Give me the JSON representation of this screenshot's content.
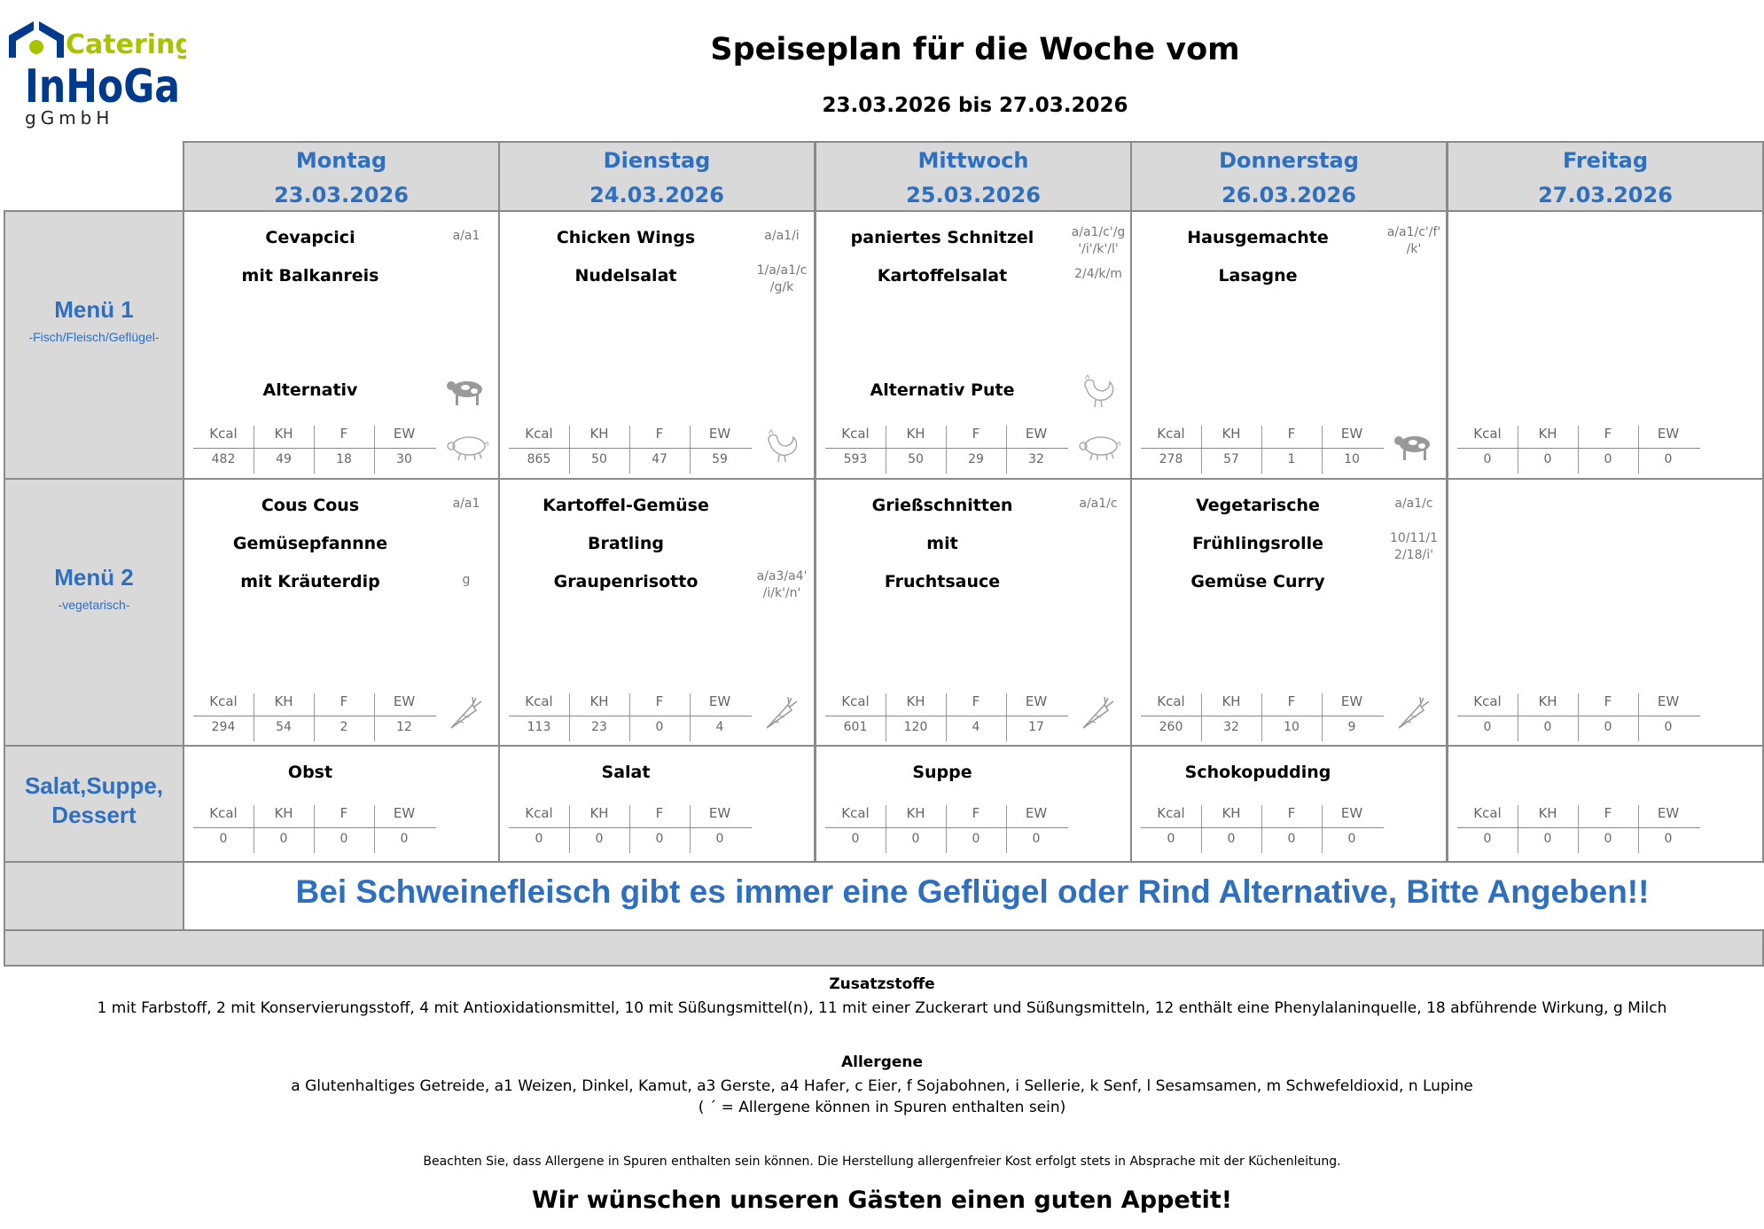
{
  "logo": {
    "line1": "Catering",
    "line2": "InHoGa",
    "line3": "gGmbH",
    "colors": {
      "blue": "#003a8c",
      "green": "#a8c400"
    }
  },
  "header": {
    "title": "Speiseplan für die Woche vom",
    "range": "23.03.2026 bis 27.03.2026"
  },
  "colors": {
    "accent": "#2f6fbf",
    "header_bg": "#d9d9d9"
  },
  "rows": {
    "menu1": {
      "label": "Menü 1",
      "sub": "-Fisch/Fleisch/Geflügel-"
    },
    "menu2": {
      "label": "Menü 2",
      "sub": "-vegetarisch-"
    },
    "side": {
      "label": "Salat,Suppe, Dessert"
    }
  },
  "nutrition_labels": [
    "Kcal",
    "KH",
    "F",
    "EW"
  ],
  "days": [
    {
      "name": "Montag",
      "date": "23.03.2026",
      "menu1": {
        "lines": [
          "Cevapcici",
          "mit Balkanreis"
        ],
        "allergens": [
          {
            "line": 0,
            "text": "a/a1"
          }
        ],
        "alt": "Alternativ",
        "alt_icon": "cow-icon",
        "icon": "pig-icon",
        "nutrition": [
          "482",
          "49",
          "18",
          "30"
        ]
      },
      "menu2": {
        "lines": [
          "Cous Cous",
          "Gemüsepfannne",
          "mit Kräuterdip"
        ],
        "allergens": [
          {
            "line": 0,
            "text": "a/a1"
          },
          {
            "line": 2,
            "text": "g"
          }
        ],
        "icon": "carrot-icon",
        "nutrition": [
          "294",
          "54",
          "2",
          "12"
        ]
      },
      "side": {
        "name": "Obst",
        "nutrition": [
          "0",
          "0",
          "0",
          "0"
        ]
      }
    },
    {
      "name": "Dienstag",
      "date": "24.03.2026",
      "menu1": {
        "lines": [
          "Chicken Wings",
          "Nudelsalat"
        ],
        "allergens": [
          {
            "line": 0,
            "text": "a/a1/i"
          },
          {
            "line": 1,
            "text": "1/a/a1/c\n/g/k"
          }
        ],
        "alt": "",
        "icon": "rooster-icon",
        "nutrition": [
          "865",
          "50",
          "47",
          "59"
        ]
      },
      "menu2": {
        "lines": [
          "Kartoffel-Gemüse",
          "Bratling",
          "Graupenrisotto"
        ],
        "allergens": [
          {
            "line": 2,
            "text": "a/a3/a4'\n/i/k'/n'"
          }
        ],
        "icon": "carrot-icon",
        "nutrition": [
          "113",
          "23",
          "0",
          "4"
        ]
      },
      "side": {
        "name": "Salat",
        "nutrition": [
          "0",
          "0",
          "0",
          "0"
        ]
      }
    },
    {
      "name": "Mittwoch",
      "date": "25.03.2026",
      "menu1": {
        "lines": [
          "paniertes Schnitzel",
          "Kartoffelsalat"
        ],
        "allergens": [
          {
            "line": 0,
            "text": "a/a1/c'/g\n'/i'/k'/l'"
          },
          {
            "line": 1,
            "text": "2/4/k/m"
          }
        ],
        "alt": "Alternativ Pute",
        "alt_icon": "rooster-icon",
        "icon": "pig-icon",
        "nutrition": [
          "593",
          "50",
          "29",
          "32"
        ]
      },
      "menu2": {
        "lines": [
          "Grießschnitten",
          "mit",
          "Fruchtsauce"
        ],
        "allergens": [
          {
            "line": 0,
            "text": "a/a1/c"
          }
        ],
        "icon": "carrot-icon",
        "nutrition": [
          "601",
          "120",
          "4",
          "17"
        ]
      },
      "side": {
        "name": "Suppe",
        "nutrition": [
          "0",
          "0",
          "0",
          "0"
        ]
      }
    },
    {
      "name": "Donnerstag",
      "date": "26.03.2026",
      "menu1": {
        "lines": [
          "Hausgemachte",
          "Lasagne"
        ],
        "allergens": [
          {
            "line": 0,
            "text": "a/a1/c'/f'\n/k'"
          }
        ],
        "alt": "",
        "icon": "cow-icon",
        "nutrition": [
          "278",
          "57",
          "1",
          "10"
        ]
      },
      "menu2": {
        "lines": [
          "Vegetarische",
          "Frühlingsrolle",
          "Gemüse Curry"
        ],
        "allergens": [
          {
            "line": 0,
            "text": "a/a1/c"
          },
          {
            "line": 1,
            "text": "10/11/1\n2/18/i'"
          }
        ],
        "icon": "carrot-icon",
        "nutrition": [
          "260",
          "32",
          "10",
          "9"
        ]
      },
      "side": {
        "name": "Schokopudding",
        "nutrition": [
          "0",
          "0",
          "0",
          "0"
        ]
      }
    },
    {
      "name": "Freitag",
      "date": "27.03.2026",
      "menu1": {
        "lines": [],
        "allergens": [],
        "alt": "",
        "nutrition": [
          "0",
          "0",
          "0",
          "0"
        ]
      },
      "menu2": {
        "lines": [],
        "allergens": [],
        "nutrition": [
          "0",
          "0",
          "0",
          "0"
        ]
      },
      "side": {
        "name": "",
        "nutrition": [
          "0",
          "0",
          "0",
          "0"
        ]
      }
    }
  ],
  "banner": "Bei Schweinefleisch gibt es immer eine Geflügel oder Rind Alternative, Bitte Angeben!!",
  "footer": {
    "additives_title": "Zusatzstoffe",
    "additives": "1 mit Farbstoff, 2 mit Konservierungsstoff, 4 mit Antioxidationsmittel, 10 mit Süßungsmittel(n), 11 mit einer Zuckerart und Süßungsmitteln, 12 enthält eine Phenylalaninquelle, 18 abführende Wirkung, g Milch",
    "allergens_title": "Allergene",
    "allergens": "a Glutenhaltiges Getreide, a1 Weizen, Dinkel, Kamut, a3 Gerste, a4 Hafer, c Eier, f Sojabohnen, i Sellerie, k Senf, l Sesamsamen, m Schwefeldioxid, n Lupine",
    "traces_note": "( ´ = Allergene können in Spuren enthalten sein)",
    "notice": "Beachten Sie, dass Allergene in Spuren enthalten sein können. Die Herstellung allergenfreier Kost erfolgt stets in Absprache mit der Küchenleitung.",
    "greeting": "Wir wünschen unseren Gästen einen guten Appetit!"
  }
}
